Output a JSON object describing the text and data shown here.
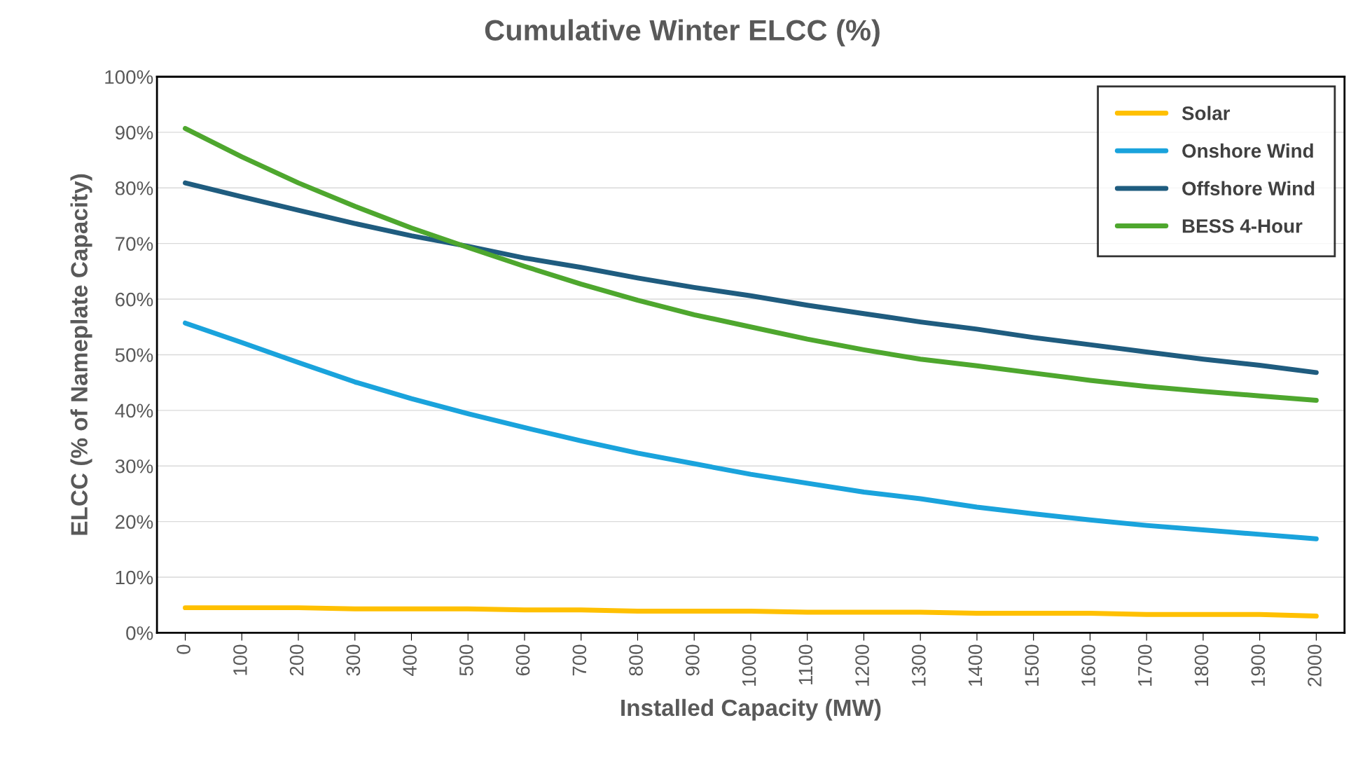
{
  "chart_data": {
    "type": "line",
    "title": "Cumulative Winter ELCC (%)",
    "xlabel": "Installed Capacity (MW)",
    "ylabel": "ELCC (% of Nameplate Capacity)",
    "categories": [
      "0",
      "100",
      "200",
      "300",
      "400",
      "500",
      "600",
      "700",
      "800",
      "900",
      "1000",
      "1100",
      "1200",
      "1300",
      "1400",
      "1500",
      "1600",
      "1700",
      "1800",
      "1900",
      "2000"
    ],
    "series": [
      {
        "name": "Solar",
        "color": "#ffc000",
        "values": [
          4.5,
          4.5,
          4.5,
          4.3,
          4.3,
          4.3,
          4.1,
          4.1,
          3.9,
          3.9,
          3.9,
          3.7,
          3.7,
          3.7,
          3.5,
          3.5,
          3.5,
          3.3,
          3.3,
          3.3,
          3.0
        ]
      },
      {
        "name": "Onshore Wind",
        "color": "#1aa3dc",
        "values": [
          55.7,
          52.2,
          48.6,
          45.1,
          42.1,
          39.4,
          36.9,
          34.5,
          32.3,
          30.4,
          28.5,
          26.9,
          25.3,
          24.1,
          22.6,
          21.4,
          20.3,
          19.3,
          18.5,
          17.7,
          16.9
        ]
      },
      {
        "name": "Offshore Wind",
        "color": "#1f5c7f",
        "values": [
          80.9,
          78.4,
          76.0,
          73.6,
          71.4,
          69.5,
          67.4,
          65.7,
          63.8,
          62.1,
          60.6,
          58.9,
          57.4,
          55.9,
          54.6,
          53.1,
          51.8,
          50.5,
          49.2,
          48.1,
          46.8
        ]
      },
      {
        "name": "BESS 4-Hour",
        "color": "#4ea72e",
        "values": [
          90.7,
          85.6,
          80.9,
          76.7,
          72.8,
          69.3,
          65.9,
          62.7,
          59.8,
          57.2,
          55.0,
          52.8,
          50.9,
          49.2,
          48.0,
          46.7,
          45.4,
          44.3,
          43.4,
          42.6,
          41.8
        ]
      }
    ],
    "ylim": [
      0,
      100
    ],
    "yticks": [
      {
        "value": 0,
        "label": "0%"
      },
      {
        "value": 10,
        "label": "10%"
      },
      {
        "value": 20,
        "label": "20%"
      },
      {
        "value": 30,
        "label": "30%"
      },
      {
        "value": 40,
        "label": "40%"
      },
      {
        "value": 50,
        "label": "50%"
      },
      {
        "value": 60,
        "label": "60%"
      },
      {
        "value": 70,
        "label": "70%"
      },
      {
        "value": 80,
        "label": "80%"
      },
      {
        "value": 90,
        "label": "90%"
      },
      {
        "value": 100,
        "label": "100%"
      }
    ],
    "grid": "y",
    "legend": "top right",
    "marker": "none",
    "line_style": "solid"
  }
}
